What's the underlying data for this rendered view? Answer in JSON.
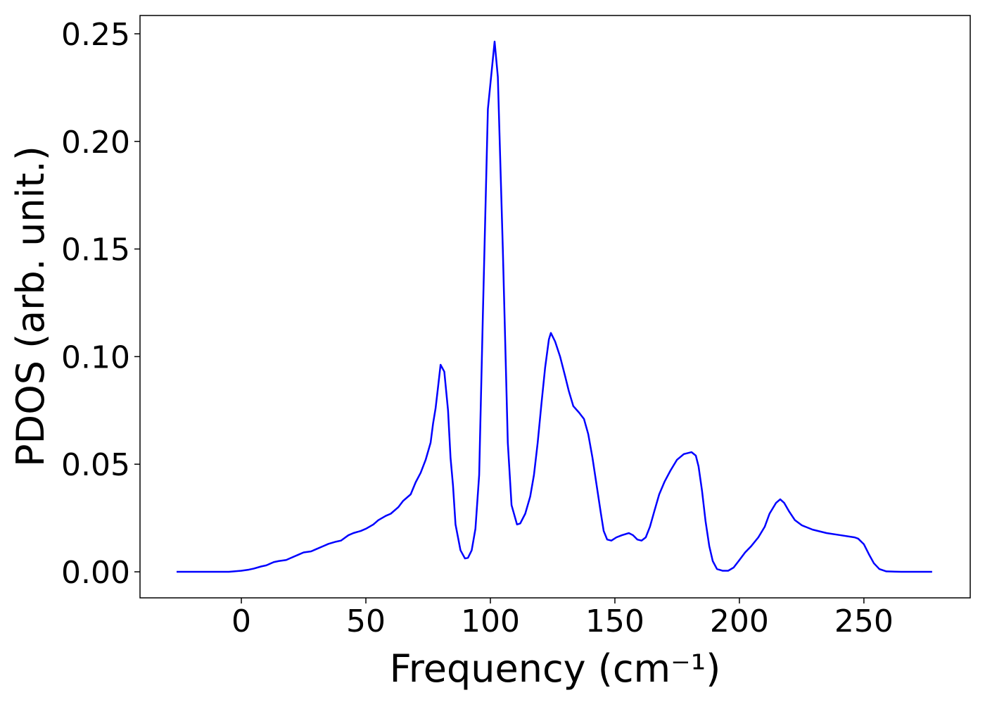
{
  "chart_data": {
    "type": "line",
    "x_label": "Frequency (cm⁻¹)",
    "y_label": "PDOS (arb. unit.)",
    "x": [
      -26,
      -15,
      -5,
      0,
      3,
      5,
      8,
      10,
      13,
      15,
      18,
      20,
      23,
      25,
      28,
      30,
      33,
      35,
      38,
      40,
      43,
      45,
      48,
      50,
      53,
      55,
      58,
      60,
      63,
      65,
      68,
      70,
      72,
      74,
      75,
      76,
      77,
      78,
      79,
      80,
      81.5,
      83,
      84,
      85,
      86,
      88,
      89.8,
      91,
      92.5,
      94,
      95.5,
      97,
      99,
      101.7,
      103,
      105,
      107,
      108.5,
      110.7,
      112,
      114,
      116,
      117.5,
      119,
      120.5,
      122,
      123.5,
      124.3,
      126,
      128,
      130,
      131.5,
      133.3,
      135.6,
      137.6,
      139.3,
      141,
      142.7,
      144.4,
      145.5,
      146.9,
      148.6,
      150.6,
      152.8,
      155.6,
      157.3,
      159,
      160.7,
      162.4,
      164.1,
      165.8,
      167.8,
      170,
      172.3,
      174.9,
      177.7,
      180.8,
      182.5,
      183.6,
      185,
      186.4,
      187.9,
      189.3,
      191,
      193.2,
      195.5,
      197.7,
      199.7,
      202.3,
      204.8,
      207.6,
      210.2,
      212.1,
      214.7,
      216.4,
      218,
      220,
      222.3,
      225.1,
      229.4,
      235,
      240.7,
      246.3,
      247.7,
      250,
      252,
      254,
      256.2,
      259,
      265,
      277.4
    ],
    "series": [
      {
        "color": "#0000ff",
        "values": [
          0,
          0,
          0,
          0.0005,
          0.001,
          0.0015,
          0.0025,
          0.003,
          0.0045,
          0.005,
          0.0055,
          0.0065,
          0.008,
          0.009,
          0.0095,
          0.0105,
          0.012,
          0.013,
          0.014,
          0.0145,
          0.017,
          0.018,
          0.019,
          0.02,
          0.022,
          0.024,
          0.026,
          0.027,
          0.03,
          0.033,
          0.036,
          0.0416,
          0.046,
          0.052,
          0.056,
          0.06,
          0.069,
          0.076,
          0.086,
          0.0962,
          0.093,
          0.075,
          0.053,
          0.04,
          0.022,
          0.01,
          0.0062,
          0.0065,
          0.01,
          0.02,
          0.045,
          0.12,
          0.215,
          0.2464,
          0.23,
          0.15,
          0.06,
          0.031,
          0.022,
          0.0225,
          0.027,
          0.035,
          0.045,
          0.06,
          0.078,
          0.095,
          0.108,
          0.111,
          0.107,
          0.1,
          0.091,
          0.084,
          0.077,
          0.074,
          0.071,
          0.064,
          0.053,
          0.04,
          0.027,
          0.019,
          0.015,
          0.0145,
          0.016,
          0.017,
          0.018,
          0.017,
          0.015,
          0.0145,
          0.016,
          0.021,
          0.028,
          0.036,
          0.042,
          0.047,
          0.052,
          0.0547,
          0.0556,
          0.054,
          0.049,
          0.0376,
          0.0236,
          0.012,
          0.005,
          0.0013,
          0.0005,
          0.0005,
          0.002,
          0.005,
          0.009,
          0.012,
          0.016,
          0.021,
          0.027,
          0.032,
          0.0337,
          0.032,
          0.028,
          0.024,
          0.0216,
          0.0196,
          0.018,
          0.017,
          0.016,
          0.0154,
          0.0128,
          0.0082,
          0.004,
          0.0013,
          0.0002,
          0,
          0
        ]
      }
    ],
    "xlim": [
      -40.7,
      292.7
    ],
    "ylim": [
      -0.0121,
      0.2585
    ],
    "xticks": [
      0,
      50,
      100,
      150,
      200,
      250
    ],
    "yticks": [
      {
        "value": 0,
        "label": "0.00"
      },
      {
        "value": 0.05,
        "label": "0.05"
      },
      {
        "value": 0.1,
        "label": "0.10"
      },
      {
        "value": 0.15,
        "label": "0.15"
      },
      {
        "value": 0.2,
        "label": "0.20"
      },
      {
        "value": 0.25,
        "label": "0.25"
      }
    ]
  }
}
